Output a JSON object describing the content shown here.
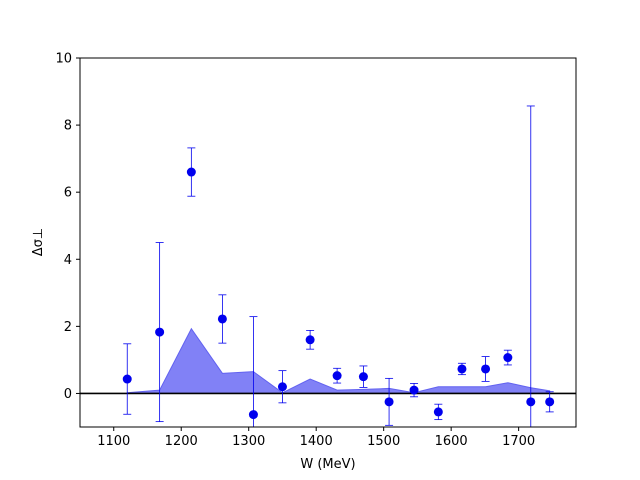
{
  "chart_data": {
    "type": "scatter",
    "title": "",
    "xlabel": "W (MeV)",
    "ylabel": "Δσ⊥",
    "xlim": [
      1050,
      1785
    ],
    "ylim": [
      -1,
      10
    ],
    "xticks": [
      1100,
      1200,
      1300,
      1400,
      1500,
      1600,
      1700
    ],
    "yticks": [
      0,
      2,
      4,
      6,
      8,
      10
    ],
    "grid": false,
    "legend": "none",
    "colors": {
      "points": "#0000ee",
      "band": "#7b7bf6",
      "zero_line": "#000000"
    },
    "series": [
      {
        "type": "errorbar",
        "x": [
          1120,
          1168,
          1215,
          1261,
          1307,
          1350,
          1391,
          1431,
          1470,
          1508,
          1545,
          1581,
          1616,
          1651,
          1684,
          1718,
          1746
        ],
        "y": [
          0.43,
          1.83,
          6.6,
          2.22,
          -0.63,
          0.2,
          1.6,
          0.53,
          0.5,
          -0.25,
          0.1,
          -0.55,
          0.73,
          0.73,
          1.07,
          -0.25,
          -0.25
        ],
        "yerr": [
          1.05,
          2.67,
          0.72,
          0.72,
          2.92,
          0.48,
          0.28,
          0.22,
          0.32,
          0.7,
          0.2,
          0.23,
          0.17,
          0.37,
          0.22,
          8.82,
          0.3
        ]
      },
      {
        "type": "area",
        "x": [
          1120,
          1168,
          1215,
          1261,
          1307,
          1350,
          1391,
          1431,
          1470,
          1508,
          1545,
          1581,
          1616,
          1651,
          1684,
          1718,
          1746
        ],
        "y": [
          0.02,
          0.1,
          1.93,
          0.6,
          0.65,
          0.02,
          0.43,
          0.1,
          0.12,
          0.15,
          0.02,
          0.2,
          0.2,
          0.2,
          0.32,
          0.17,
          0.08
        ]
      }
    ]
  }
}
